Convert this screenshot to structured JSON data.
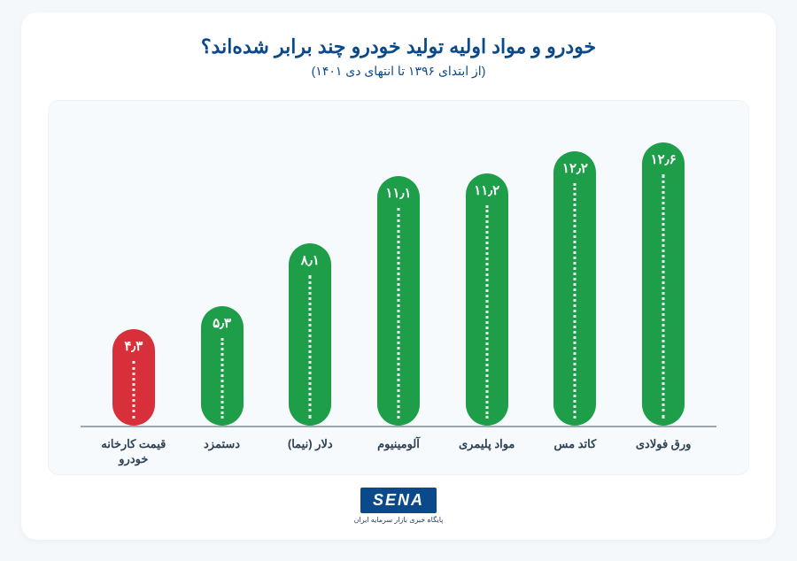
{
  "title": "خودرو و مواد اولیه تولید خودرو چند برابر شده‌اند؟",
  "subtitle": "(از ابتدای ۱۳۹۶ تا انتهای دی ۱۴۰۱)",
  "chart": {
    "type": "bar",
    "background_color": "#f7fafd",
    "axis_color": "#9aa6b2",
    "value_text_color": "#ffffff",
    "value_fontsize": 15,
    "label_color": "#2e4052",
    "label_fontsize": 13,
    "title_color": "#0b4a8a",
    "title_fontsize": 22,
    "subtitle_fontsize": 14,
    "max_value": 13.5,
    "bars": [
      {
        "label": "ورق فولادی",
        "value": 12.6,
        "display": "۱۲٫۶",
        "color": "#1e9e49"
      },
      {
        "label": "کاتد مس",
        "value": 12.2,
        "display": "۱۲٫۲",
        "color": "#1e9e49"
      },
      {
        "label": "مواد پلیمری",
        "value": 11.2,
        "display": "۱۱٫۲",
        "color": "#1e9e49"
      },
      {
        "label": "آلومینیوم",
        "value": 11.1,
        "display": "۱۱٫۱",
        "color": "#1e9e49"
      },
      {
        "label": "دلار (نیما)",
        "value": 8.1,
        "display": "۸٫۱",
        "color": "#1e9e49"
      },
      {
        "label": "دستمزد",
        "value": 5.3,
        "display": "۵٫۳",
        "color": "#1e9e49"
      },
      {
        "label": "قیمت کارخانه\nخودرو",
        "value": 4.3,
        "display": "۴٫۳",
        "color": "#d8303a"
      }
    ]
  },
  "logo": {
    "text": "SENA",
    "subtext": "پایگاه خبری بازار سرمایه ایران",
    "bg": "#0b4a8a"
  }
}
